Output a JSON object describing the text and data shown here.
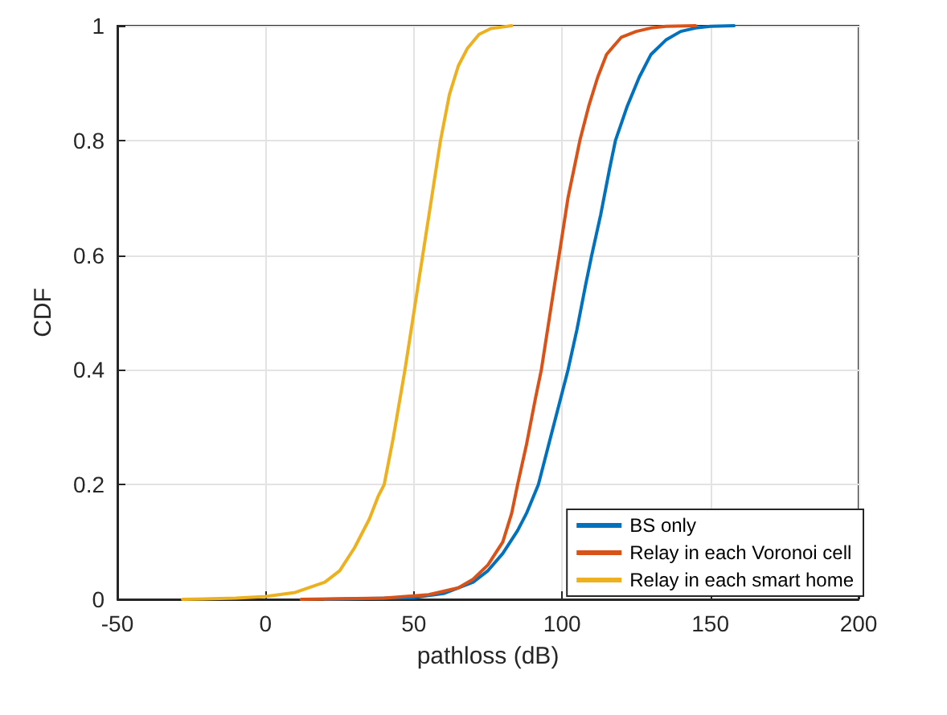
{
  "chart_data": {
    "type": "line",
    "xlabel": "pathloss (dB)",
    "ylabel": "CDF",
    "xlim": [
      -50,
      200
    ],
    "xticks": [
      -50,
      0,
      50,
      100,
      150,
      200
    ],
    "ylim": [
      0,
      1
    ],
    "yticks": [
      0,
      0.2,
      0.4,
      0.6,
      0.8,
      1
    ],
    "grid": true,
    "legend": "bottom right",
    "marker": "none",
    "line_style": "solid",
    "series": [
      {
        "name": "BS only",
        "color": "#0072bd",
        "x": [
          20,
          50,
          60,
          70,
          75,
          80,
          85,
          88,
          92,
          96,
          100,
          102,
          105,
          108,
          110,
          113,
          116,
          118,
          122,
          126,
          130,
          135,
          140,
          145,
          150,
          158
        ],
        "values": [
          0,
          0.003,
          0.01,
          0.03,
          0.05,
          0.08,
          0.12,
          0.15,
          0.2,
          0.28,
          0.36,
          0.4,
          0.47,
          0.55,
          0.6,
          0.67,
          0.75,
          0.8,
          0.86,
          0.91,
          0.95,
          0.975,
          0.99,
          0.996,
          0.999,
          1
        ]
      },
      {
        "name": "Relay in each Voronoi cell",
        "color": "#d95319",
        "x": [
          12,
          40,
          55,
          65,
          70,
          75,
          80,
          83,
          85,
          88,
          91,
          93,
          96,
          99,
          102,
          104,
          106,
          109,
          112,
          115,
          120,
          125,
          130,
          135,
          145
        ],
        "values": [
          0,
          0.002,
          0.008,
          0.02,
          0.035,
          0.06,
          0.1,
          0.15,
          0.2,
          0.27,
          0.35,
          0.4,
          0.5,
          0.6,
          0.7,
          0.75,
          0.8,
          0.86,
          0.91,
          0.95,
          0.98,
          0.99,
          0.996,
          0.999,
          1
        ]
      },
      {
        "name": "Relay in each smart home",
        "color": "#edb120",
        "x": [
          -28,
          -10,
          0,
          10,
          20,
          25,
          30,
          35,
          38,
          40,
          43,
          47,
          50,
          53,
          56,
          59,
          62,
          65,
          68,
          72,
          76,
          83
        ],
        "values": [
          0,
          0.002,
          0.005,
          0.012,
          0.03,
          0.05,
          0.09,
          0.14,
          0.18,
          0.2,
          0.28,
          0.4,
          0.5,
          0.6,
          0.7,
          0.8,
          0.88,
          0.93,
          0.96,
          0.985,
          0.995,
          1
        ]
      }
    ]
  }
}
